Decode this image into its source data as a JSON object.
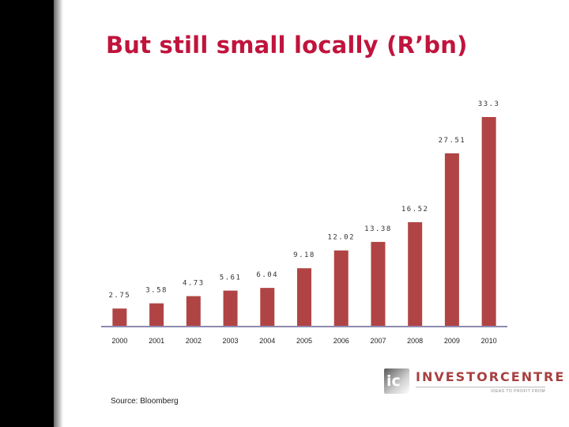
{
  "slide": {
    "title": "But still small locally (R’bn)",
    "source": "Source: Bloomberg"
  },
  "logo": {
    "mark": "ic",
    "name": "INVESTORCENTRE",
    "tagline": "IDEAS TO PROFIT FROM"
  },
  "colors": {
    "title": "#c0143c",
    "bar": "#b04444",
    "axis": "#8e8ab0"
  },
  "chart_data": {
    "type": "bar",
    "title": "",
    "xlabel": "",
    "ylabel": "",
    "categories": [
      "2000",
      "2001",
      "2002",
      "2003",
      "2004",
      "2005",
      "2006",
      "2007",
      "2008",
      "2009",
      "2010"
    ],
    "values": [
      2.75,
      3.58,
      4.73,
      5.61,
      6.04,
      9.18,
      12.02,
      13.38,
      16.52,
      27.51,
      33.3
    ],
    "labels": [
      "2.75",
      "3.58",
      "4.73",
      "5.61",
      "6.04",
      "9.18",
      "12.02",
      "13.38",
      "16.52",
      "27.51",
      "33.3"
    ],
    "ylim": [
      0,
      33.3
    ],
    "grid": false,
    "legend": "none"
  }
}
